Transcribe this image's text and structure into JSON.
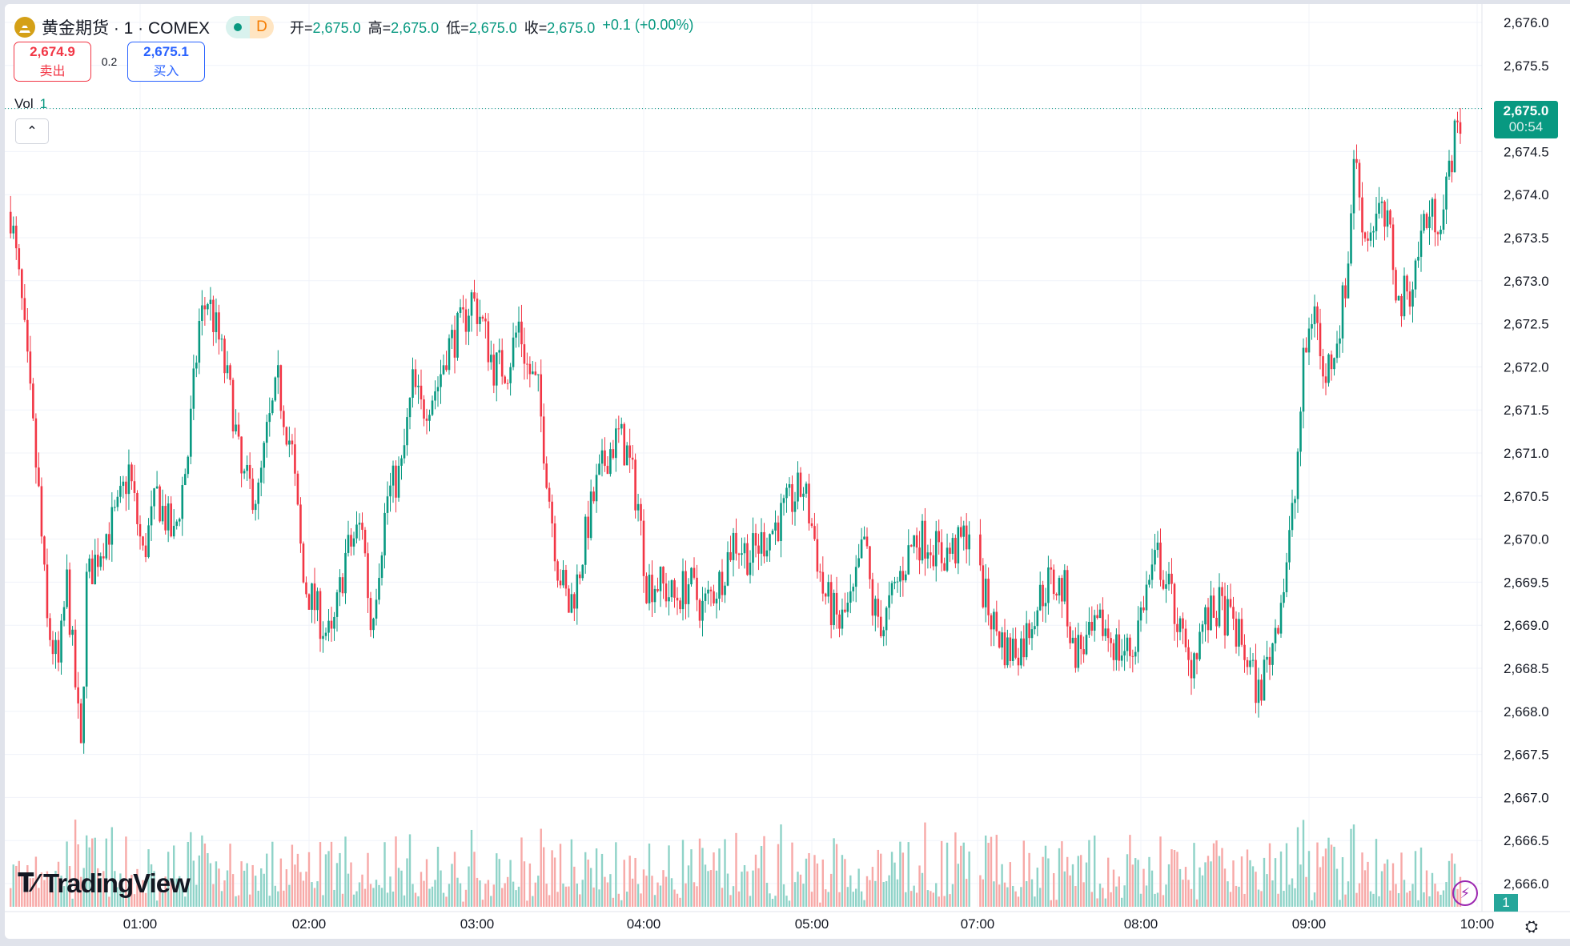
{
  "header": {
    "symbol_title": "黄金期货 · 1 · COMEX",
    "market_status_badge": "D",
    "ohlc": [
      {
        "label": "开=",
        "value": "2,675.0"
      },
      {
        "label": "高=",
        "value": "2,675.0"
      },
      {
        "label": "低=",
        "value": "2,675.0"
      },
      {
        "label": "收=",
        "value": "2,675.0"
      }
    ],
    "change": "+0.1 (+0.00%)"
  },
  "trade": {
    "sell_price": "2,674.9",
    "sell_label": "卖出",
    "spread": "0.2",
    "buy_price": "2,675.1",
    "buy_label": "买入"
  },
  "volume_legend": {
    "label": "Vol",
    "value": "1"
  },
  "current_price": {
    "price": "2,675.0",
    "countdown": "00:54"
  },
  "current_volume": "1",
  "branding": "TradingView",
  "colors": {
    "up": "#089981",
    "down": "#f23645",
    "vol_up": "#8fd3c8",
    "vol_down": "#f7a9a7",
    "accent": "#2962ff"
  },
  "chart_data": {
    "type": "candlestick",
    "interval": "1 minute",
    "y_ticks": [
      "2,676.0",
      "2,675.5",
      "2,675.0",
      "2,674.5",
      "2,674.0",
      "2,673.5",
      "2,673.0",
      "2,672.5",
      "2,672.0",
      "2,671.5",
      "2,671.0",
      "2,670.5",
      "2,670.0",
      "2,669.5",
      "2,669.0",
      "2,668.5",
      "2,668.0",
      "2,667.5",
      "2,667.0",
      "2,666.5",
      "2,666.0"
    ],
    "ylim": [
      2666.0,
      2676.0
    ],
    "x_ticks": [
      "01:00",
      "02:00",
      "03:00",
      "04:00",
      "05:00",
      "07:00",
      "08:00",
      "09:00",
      "10:00"
    ],
    "grid": true,
    "approx_close_path": [
      [
        "00:13",
        2673.8
      ],
      [
        "00:17",
        2672.7
      ],
      [
        "00:23",
        2670.5
      ],
      [
        "00:26",
        2669.0
      ],
      [
        "00:30",
        2668.5
      ],
      [
        "00:33",
        2669.5
      ],
      [
        "00:38",
        2667.5
      ],
      [
        "00:40",
        2669.5
      ],
      [
        "00:46",
        2670.0
      ],
      [
        "00:51",
        2670.3
      ],
      [
        "00:55",
        2670.8
      ],
      [
        "01:00",
        2669.8
      ],
      [
        "01:05",
        2670.5
      ],
      [
        "01:11",
        2670.0
      ],
      [
        "01:16",
        2671.0
      ],
      [
        "01:20",
        2672.5
      ],
      [
        "01:23",
        2672.8
      ],
      [
        "01:27",
        2672.3
      ],
      [
        "01:32",
        2671.5
      ],
      [
        "01:35",
        2670.7
      ],
      [
        "01:41",
        2670.5
      ],
      [
        "01:44",
        2671.2
      ],
      [
        "01:48",
        2671.8
      ],
      [
        "01:53",
        2671.0
      ],
      [
        "01:57",
        2669.5
      ],
      [
        "02:00",
        2669.3
      ],
      [
        "02:04",
        2669.0
      ],
      [
        "02:07",
        2668.8
      ],
      [
        "02:12",
        2669.8
      ],
      [
        "02:18",
        2670.2
      ],
      [
        "02:21",
        2669.0
      ],
      [
        "02:27",
        2670.5
      ],
      [
        "02:32",
        2670.8
      ],
      [
        "02:36",
        2671.8
      ],
      [
        "02:39",
        2671.5
      ],
      [
        "02:45",
        2671.8
      ],
      [
        "02:48",
        2672.2
      ],
      [
        "02:54",
        2672.5
      ],
      [
        "02:57",
        2672.8
      ],
      [
        "03:00",
        2672.6
      ],
      [
        "03:05",
        2672.0
      ],
      [
        "03:10",
        2672.0
      ],
      [
        "03:14",
        2672.5
      ],
      [
        "03:17",
        2672.0
      ],
      [
        "03:21",
        2671.7
      ],
      [
        "03:25",
        2670.5
      ],
      [
        "03:28",
        2669.7
      ],
      [
        "03:32",
        2669.2
      ],
      [
        "03:35",
        2669.5
      ],
      [
        "03:39",
        2670.2
      ],
      [
        "03:42",
        2670.6
      ],
      [
        "03:46",
        2671.0
      ],
      [
        "03:50",
        2671.2
      ],
      [
        "03:53",
        2671.0
      ],
      [
        "03:57",
        2670.4
      ],
      [
        "04:00",
        2669.5
      ],
      [
        "04:04",
        2669.5
      ],
      [
        "04:10",
        2669.3
      ],
      [
        "04:15",
        2669.5
      ],
      [
        "04:20",
        2669.2
      ],
      [
        "04:26",
        2669.5
      ],
      [
        "04:31",
        2670.0
      ],
      [
        "04:37",
        2669.8
      ],
      [
        "04:42",
        2670.0
      ],
      [
        "04:47",
        2670.2
      ],
      [
        "04:53",
        2670.5
      ],
      [
        "04:56",
        2670.6
      ],
      [
        "05:00",
        2670.0
      ],
      [
        "05:03",
        2669.4
      ],
      [
        "05:09",
        2669.0
      ],
      [
        "05:14",
        2669.3
      ],
      [
        "05:18",
        2670.0
      ],
      [
        "05:21",
        2669.2
      ],
      [
        "05:25",
        2669.0
      ],
      [
        "05:30",
        2669.5
      ],
      [
        "05:36",
        2670.0
      ],
      [
        "05:41",
        2670.0
      ],
      [
        "05:46",
        2669.8
      ],
      [
        "05:52",
        2669.9
      ],
      [
        "05:57",
        2670.2
      ],
      [
        "07:00",
        2669.5
      ],
      [
        "07:05",
        2669.0
      ],
      [
        "07:10",
        2668.7
      ],
      [
        "07:16",
        2668.8
      ],
      [
        "07:20",
        2669.2
      ],
      [
        "07:25",
        2669.5
      ],
      [
        "07:31",
        2669.4
      ],
      [
        "07:34",
        2668.7
      ],
      [
        "07:40",
        2668.8
      ],
      [
        "07:45",
        2669.0
      ],
      [
        "07:51",
        2668.7
      ],
      [
        "07:56",
        2668.7
      ],
      [
        "08:00",
        2669.3
      ],
      [
        "08:05",
        2669.8
      ],
      [
        "08:11",
        2669.2
      ],
      [
        "08:16",
        2668.5
      ],
      [
        "08:21",
        2669.0
      ],
      [
        "08:27",
        2669.2
      ],
      [
        "08:32",
        2669.0
      ],
      [
        "08:37",
        2668.6
      ],
      [
        "08:41",
        2668.2
      ],
      [
        "08:46",
        2668.8
      ],
      [
        "08:50",
        2669.5
      ],
      [
        "08:54",
        2670.5
      ],
      [
        "08:57",
        2672.0
      ],
      [
        "09:01",
        2672.8
      ],
      [
        "09:04",
        2671.8
      ],
      [
        "09:10",
        2672.5
      ],
      [
        "09:13",
        2673.2
      ],
      [
        "09:15",
        2674.5
      ],
      [
        "09:19",
        2673.5
      ],
      [
        "09:24",
        2673.8
      ],
      [
        "09:28",
        2673.5
      ],
      [
        "09:31",
        2672.7
      ],
      [
        "09:36",
        2673.0
      ],
      [
        "09:40",
        2673.7
      ],
      [
        "09:47",
        2673.8
      ],
      [
        "09:50",
        2674.5
      ],
      [
        "09:54",
        2675.0
      ]
    ],
    "last_price": 2675.0
  }
}
